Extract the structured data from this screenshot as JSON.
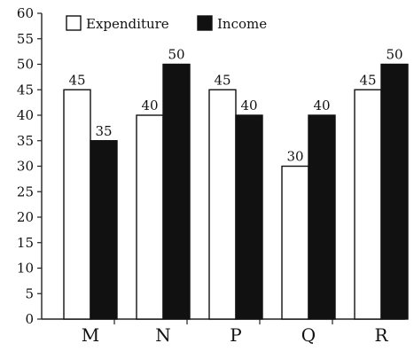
{
  "chart_data": {
    "type": "bar",
    "categories": [
      "M",
      "N",
      "P",
      "Q",
      "R"
    ],
    "series": [
      {
        "name": "Expenditure",
        "values": [
          45,
          40,
          45,
          30,
          45
        ],
        "color": "#ffffff"
      },
      {
        "name": "Income",
        "values": [
          35,
          50,
          40,
          40,
          50
        ],
        "color": "#111111"
      }
    ],
    "ylim": [
      0,
      60
    ],
    "yticks": [
      "0",
      "5",
      "10",
      "15",
      "20",
      "25",
      "30",
      "35",
      "40",
      "45",
      "50",
      "55",
      "60"
    ],
    "data_labels": true,
    "legend": {
      "position": "top-left",
      "entries": [
        "Expenditure",
        "Income"
      ]
    },
    "grid": false,
    "title": "",
    "xlabel": "",
    "ylabel": ""
  }
}
